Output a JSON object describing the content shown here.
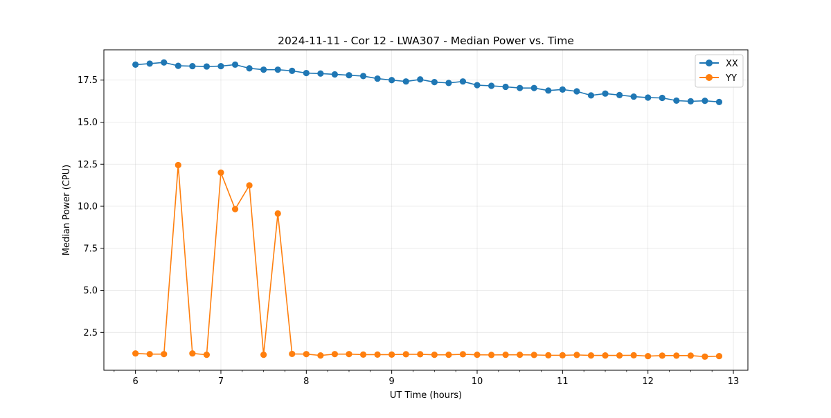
{
  "chart_data": {
    "type": "line",
    "title": "2024-11-11 - Cor 12 - LWA307 - Median Power vs. Time",
    "xlabel": "UT Time (hours)",
    "ylabel": "Median Power (CPU)",
    "xlim": [
      5.63,
      13.17
    ],
    "ylim": [
      0.25,
      19.3
    ],
    "xticks": [
      6,
      7,
      8,
      9,
      10,
      11,
      12,
      13
    ],
    "xtick_labels": [
      "6",
      "7",
      "8",
      "9",
      "10",
      "11",
      "12",
      "13"
    ],
    "minor_xtick_step": 0.25,
    "yticks": [
      2.5,
      5.0,
      7.5,
      10.0,
      12.5,
      15.0,
      17.5
    ],
    "ytick_labels": [
      "2.5",
      "5.0",
      "7.5",
      "10.0",
      "12.5",
      "15.0",
      "17.5"
    ],
    "grid": true,
    "legend_position": "top-right",
    "x": [
      6.0,
      6.1667,
      6.3333,
      6.5,
      6.6667,
      6.8333,
      7.0,
      7.1667,
      7.3333,
      7.5,
      7.6667,
      7.8333,
      8.0,
      8.1667,
      8.3333,
      8.5,
      8.6667,
      8.8333,
      9.0,
      9.1667,
      9.3333,
      9.5,
      9.6667,
      9.8333,
      10.0,
      10.1667,
      10.3333,
      10.5,
      10.6667,
      10.8333,
      11.0,
      11.1667,
      11.3333,
      11.5,
      11.6667,
      11.8333,
      12.0,
      12.1667,
      12.3333,
      12.5,
      12.6667,
      12.8333
    ],
    "series": [
      {
        "name": "XX",
        "color": "#1f77b4",
        "values": [
          18.42,
          18.48,
          18.55,
          18.35,
          18.33,
          18.31,
          18.33,
          18.42,
          18.2,
          18.12,
          18.12,
          18.05,
          17.92,
          17.89,
          17.84,
          17.79,
          17.74,
          17.59,
          17.5,
          17.42,
          17.54,
          17.38,
          17.33,
          17.42,
          17.2,
          17.16,
          17.1,
          17.03,
          17.03,
          16.88,
          16.94,
          16.83,
          16.59,
          16.7,
          16.61,
          16.52,
          16.46,
          16.44,
          16.28,
          16.24,
          16.27,
          16.2
        ]
      },
      {
        "name": "YY",
        "color": "#ff7f0e",
        "values": [
          1.25,
          1.21,
          1.21,
          12.45,
          1.25,
          1.17,
          12.0,
          9.83,
          11.24,
          1.17,
          9.57,
          1.22,
          1.21,
          1.13,
          1.21,
          1.21,
          1.18,
          1.18,
          1.18,
          1.2,
          1.2,
          1.17,
          1.17,
          1.2,
          1.17,
          1.16,
          1.17,
          1.17,
          1.16,
          1.14,
          1.14,
          1.16,
          1.13,
          1.13,
          1.13,
          1.14,
          1.09,
          1.12,
          1.12,
          1.12,
          1.06,
          1.09
        ]
      }
    ]
  }
}
